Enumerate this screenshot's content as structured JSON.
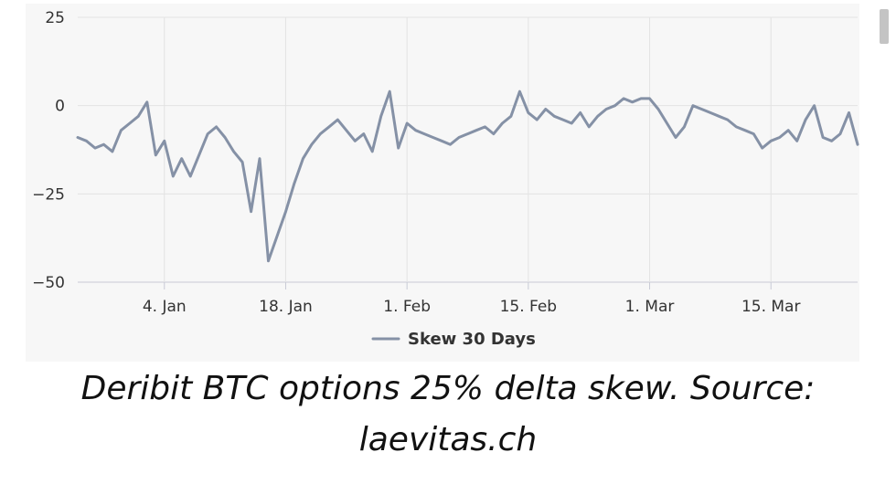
{
  "chart_data": {
    "type": "line",
    "title": "",
    "xlabel": "",
    "ylabel": "",
    "ylim": [
      -50,
      25
    ],
    "yticks": [
      25,
      0,
      -25,
      -50
    ],
    "xtick_labels": [
      "4. Jan",
      "18. Jan",
      "1. Feb",
      "15. Feb",
      "1. Mar",
      "15. Mar"
    ],
    "xtick_dates": [
      "2021-01-04",
      "2021-01-18",
      "2021-02-01",
      "2021-02-15",
      "2021-03-01",
      "2021-03-15"
    ],
    "xlim": [
      "2020-12-25",
      "2021-03-25"
    ],
    "grid": true,
    "legend_position": "bottom-center",
    "series": [
      {
        "name": "Skew 30 Days",
        "color": "#8591a6",
        "x": [
          "2020-12-25",
          "2020-12-26",
          "2020-12-27",
          "2020-12-28",
          "2020-12-29",
          "2020-12-30",
          "2020-12-31",
          "2021-01-01",
          "2021-01-02",
          "2021-01-03",
          "2021-01-04",
          "2021-01-05",
          "2021-01-06",
          "2021-01-07",
          "2021-01-08",
          "2021-01-09",
          "2021-01-10",
          "2021-01-11",
          "2021-01-12",
          "2021-01-13",
          "2021-01-14",
          "2021-01-15",
          "2021-01-16",
          "2021-01-17",
          "2021-01-18",
          "2021-01-19",
          "2021-01-20",
          "2021-01-21",
          "2021-01-22",
          "2021-01-23",
          "2021-01-24",
          "2021-01-25",
          "2021-01-26",
          "2021-01-27",
          "2021-01-28",
          "2021-01-29",
          "2021-01-30",
          "2021-01-31",
          "2021-02-01",
          "2021-02-02",
          "2021-02-03",
          "2021-02-04",
          "2021-02-05",
          "2021-02-06",
          "2021-02-07",
          "2021-02-08",
          "2021-02-09",
          "2021-02-10",
          "2021-02-11",
          "2021-02-12",
          "2021-02-13",
          "2021-02-14",
          "2021-02-15",
          "2021-02-16",
          "2021-02-17",
          "2021-02-18",
          "2021-02-19",
          "2021-02-20",
          "2021-02-21",
          "2021-02-22",
          "2021-02-23",
          "2021-02-24",
          "2021-02-25",
          "2021-02-26",
          "2021-02-27",
          "2021-02-28",
          "2021-03-01",
          "2021-03-02",
          "2021-03-03",
          "2021-03-04",
          "2021-03-05",
          "2021-03-06",
          "2021-03-07",
          "2021-03-08",
          "2021-03-09",
          "2021-03-10",
          "2021-03-11",
          "2021-03-12",
          "2021-03-13",
          "2021-03-14",
          "2021-03-15",
          "2021-03-16",
          "2021-03-17",
          "2021-03-18",
          "2021-03-19",
          "2021-03-20",
          "2021-03-21",
          "2021-03-22",
          "2021-03-23",
          "2021-03-24",
          "2021-03-25"
        ],
        "values": [
          -9,
          -10,
          -12,
          -11,
          -13,
          -7,
          -5,
          -3,
          1,
          -14,
          -10,
          -20,
          -15,
          -20,
          -14,
          -8,
          -6,
          -9,
          -13,
          -16,
          -30,
          -15,
          -44,
          -37,
          -30,
          -22,
          -15,
          -11,
          -8,
          -6,
          -4,
          -7,
          -10,
          -8,
          -13,
          -3,
          4,
          -12,
          -5,
          -7,
          -8,
          -9,
          -10,
          -11,
          -9,
          -8,
          -7,
          -6,
          -8,
          -5,
          -3,
          4,
          -2,
          -4,
          -1,
          -3,
          -4,
          -5,
          -2,
          -6,
          -3,
          -1,
          0,
          2,
          1,
          2,
          2,
          -1,
          -5,
          -9,
          -6,
          0,
          -1,
          -2,
          -3,
          -4,
          -6,
          -7,
          -8,
          -12,
          -10,
          -9,
          -7,
          -10,
          -4,
          0,
          -9,
          -10,
          -8,
          -2,
          -11
        ]
      }
    ]
  },
  "caption": {
    "line1": "Deribit BTC options 25% delta skew. Source:",
    "line2": "laevitas.ch"
  }
}
